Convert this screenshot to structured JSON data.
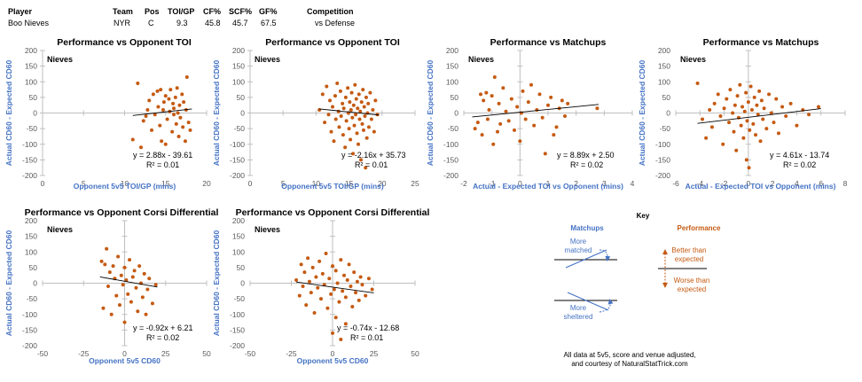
{
  "header": {
    "columns": [
      "Player",
      "Team",
      "Pos",
      "TOI/GP",
      "CF%",
      "SCF%",
      "GF%",
      "Competition"
    ],
    "values": [
      "Boo Nieves",
      "NYR",
      "C",
      "9.3",
      "45.8",
      "45.7",
      "67.5",
      "vs Defense"
    ]
  },
  "colors": {
    "point": "#c55a11",
    "axis_label": "#4472c4",
    "trend": "#000000",
    "tick": "#595959",
    "key_matchup": "#4472c4",
    "key_performance": "#c55a11"
  },
  "chart_data": [
    {
      "type": "scatter",
      "title": "Performance vs Opponent TOI",
      "panel_label": "Nieves",
      "xlabel": "Opponent 5v5 TOI/GP (mins)",
      "ylabel": "Actual CD60 - Expected CD60",
      "xlim": [
        0,
        20
      ],
      "ylim": [
        -200,
        200
      ],
      "xticks": [
        0,
        5,
        10,
        15,
        20
      ],
      "yticks": [
        200,
        150,
        100,
        50,
        0,
        -50,
        -100,
        -150,
        -200
      ],
      "trend": {
        "slope": 2.88,
        "intercept": -39.61,
        "x_range": [
          11,
          18.2
        ]
      },
      "equation": "y = 2.88x - 39.61",
      "r2": "R² = 0.01",
      "points": [
        [
          11,
          -85
        ],
        [
          11.6,
          95
        ],
        [
          12,
          -110
        ],
        [
          12.3,
          -25
        ],
        [
          12.6,
          -10
        ],
        [
          12.8,
          10
        ],
        [
          13,
          40
        ],
        [
          13.3,
          -55
        ],
        [
          13.5,
          60
        ],
        [
          13.7,
          -5
        ],
        [
          14,
          70
        ],
        [
          14.1,
          20
        ],
        [
          14.3,
          -40
        ],
        [
          14.4,
          75
        ],
        [
          14.5,
          -90
        ],
        [
          14.7,
          10
        ],
        [
          14.8,
          35
        ],
        [
          15,
          -100
        ],
        [
          15,
          55
        ],
        [
          15.2,
          -20
        ],
        [
          15.4,
          45
        ],
        [
          15.5,
          5
        ],
        [
          15.6,
          75
        ],
        [
          15.8,
          -60
        ],
        [
          15.9,
          30
        ],
        [
          16,
          -5
        ],
        [
          16,
          15
        ],
        [
          16.2,
          50
        ],
        [
          16.3,
          -35
        ],
        [
          16.4,
          80
        ],
        [
          16.5,
          0
        ],
        [
          16.6,
          -75
        ],
        [
          16.7,
          25
        ],
        [
          16.8,
          -15
        ],
        [
          17,
          60
        ],
        [
          17.1,
          -45
        ],
        [
          17.2,
          35
        ],
        [
          17.4,
          -90
        ],
        [
          17.5,
          10
        ],
        [
          17.6,
          115
        ],
        [
          17.8,
          -30
        ],
        [
          18,
          -55
        ]
      ]
    },
    {
      "type": "scatter",
      "title": "Performance vs Opponent TOI",
      "panel_label": "Nieves",
      "xlabel": "Opponent 5v5 TOI/GP (mins)",
      "ylabel": "Actual CD60 - Expected CD60",
      "xlim": [
        0,
        25
      ],
      "ylim": [
        -200,
        200
      ],
      "xticks": [
        0,
        5,
        10,
        15,
        20,
        25
      ],
      "yticks": [
        200,
        150,
        100,
        50,
        0,
        -50,
        -100,
        -150,
        -200
      ],
      "trend": {
        "slope": -2.16,
        "intercept": 35.73,
        "x_range": [
          10.5,
          19.5
        ]
      },
      "equation": "y = -2.16x + 35.73",
      "r2": "R² = 0.01",
      "points": [
        [
          10.5,
          10
        ],
        [
          11,
          60
        ],
        [
          11.3,
          -30
        ],
        [
          11.6,
          85
        ],
        [
          11.9,
          -5
        ],
        [
          12.1,
          40
        ],
        [
          12.3,
          -60
        ],
        [
          12.5,
          20
        ],
        [
          12.7,
          -90
        ],
        [
          12.9,
          55
        ],
        [
          13,
          -20
        ],
        [
          13.2,
          95
        ],
        [
          13.4,
          5
        ],
        [
          13.5,
          -45
        ],
        [
          13.7,
          70
        ],
        [
          13.8,
          -10
        ],
        [
          14,
          30
        ],
        [
          14.1,
          -70
        ],
        [
          14.2,
          15
        ],
        [
          14.4,
          -110
        ],
        [
          14.5,
          50
        ],
        [
          14.6,
          -25
        ],
        [
          14.8,
          80
        ],
        [
          14.9,
          0
        ],
        [
          15,
          -50
        ],
        [
          15.1,
          35
        ],
        [
          15.2,
          -85
        ],
        [
          15.3,
          10
        ],
        [
          15.4,
          65
        ],
        [
          15.5,
          -15
        ],
        [
          15.6,
          -130
        ],
        [
          15.7,
          25
        ],
        [
          15.8,
          -40
        ],
        [
          15.9,
          90
        ],
        [
          16,
          -5
        ],
        [
          16.1,
          45
        ],
        [
          16.2,
          -65
        ],
        [
          16.3,
          15
        ],
        [
          16.4,
          -100
        ],
        [
          16.5,
          60
        ],
        [
          16.6,
          -20
        ],
        [
          16.7,
          5
        ],
        [
          16.8,
          -150
        ],
        [
          16.9,
          35
        ],
        [
          17,
          -35
        ],
        [
          17.1,
          75
        ],
        [
          17.2,
          -55
        ],
        [
          17.3,
          20
        ],
        [
          17.4,
          -10
        ],
        [
          17.5,
          -175
        ],
        [
          17.6,
          50
        ],
        [
          17.7,
          -80
        ],
        [
          17.8,
          0
        ],
        [
          17.9,
          30
        ],
        [
          18,
          -45
        ],
        [
          18.2,
          65
        ],
        [
          18.4,
          -20
        ],
        [
          18.6,
          10
        ],
        [
          18.8,
          -60
        ],
        [
          19,
          40
        ],
        [
          19.3,
          -5
        ]
      ]
    },
    {
      "type": "scatter",
      "title": "Performance vs Matchups",
      "panel_label": "Nieves",
      "xlabel": "Actual - Expected TOI vs Opponent (mins)",
      "ylabel": "Actual CD60 - Expected CD60",
      "xlim": [
        -2,
        4
      ],
      "ylim": [
        -200,
        200
      ],
      "xticks": [
        -2,
        -1,
        0,
        1,
        2,
        3,
        4
      ],
      "yticks": [
        200,
        150,
        100,
        50,
        0,
        -50,
        -100,
        -150,
        -200
      ],
      "trend": {
        "slope": 8.89,
        "intercept": 2.5,
        "x_range": [
          -1.7,
          2.8
        ]
      },
      "equation": "y = 8.89x + 2.50",
      "r2": "R² = 0.02",
      "points": [
        [
          -1.6,
          -50
        ],
        [
          -1.5,
          -30
        ],
        [
          -1.4,
          60
        ],
        [
          -1.35,
          -70
        ],
        [
          -1.3,
          40
        ],
        [
          -1.2,
          65
        ],
        [
          -1.15,
          -20
        ],
        [
          -1.1,
          10
        ],
        [
          -1,
          55
        ],
        [
          -0.95,
          -100
        ],
        [
          -0.9,
          115
        ],
        [
          -0.8,
          -60
        ],
        [
          -0.75,
          30
        ],
        [
          -0.7,
          -35
        ],
        [
          -0.6,
          80
        ],
        [
          -0.5,
          5
        ],
        [
          -0.4,
          -25
        ],
        [
          -0.3,
          45
        ],
        [
          -0.2,
          -55
        ],
        [
          -0.1,
          20
        ],
        [
          0,
          -90
        ],
        [
          0.05,
          0
        ],
        [
          0.1,
          70
        ],
        [
          0.2,
          -20
        ],
        [
          0.3,
          35
        ],
        [
          0.4,
          90
        ],
        [
          0.5,
          -40
        ],
        [
          0.6,
          10
        ],
        [
          0.7,
          60
        ],
        [
          0.8,
          -15
        ],
        [
          0.9,
          -130
        ],
        [
          1,
          25
        ],
        [
          1.1,
          50
        ],
        [
          1.2,
          -70
        ],
        [
          1.3,
          -45
        ],
        [
          1.4,
          15
        ],
        [
          1.5,
          40
        ],
        [
          1.6,
          -10
        ],
        [
          1.7,
          30
        ],
        [
          2.75,
          15
        ]
      ]
    },
    {
      "type": "scatter",
      "title": "Performance vs Matchups",
      "panel_label": "Nieves",
      "xlabel": "Actual - Expected TOI vs Opponent (mins)",
      "ylabel": "Actual CD60 - Expected CD60",
      "xlim": [
        -6,
        8
      ],
      "ylim": [
        -200,
        200
      ],
      "xticks": [
        -6,
        -4,
        -2,
        0,
        2,
        4,
        6,
        8
      ],
      "yticks": [
        200,
        150,
        100,
        50,
        0,
        -50,
        -100,
        -150,
        -200
      ],
      "trend": {
        "slope": 4.61,
        "intercept": -13.74,
        "x_range": [
          -4.2,
          6
        ]
      },
      "equation": "y = 4.61x - 13.74",
      "r2": "R² = 0.02",
      "points": [
        [
          -4.2,
          95
        ],
        [
          -3.8,
          -20
        ],
        [
          -3.5,
          -80
        ],
        [
          -3.2,
          10
        ],
        [
          -3,
          -45
        ],
        [
          -2.8,
          30
        ],
        [
          -2.5,
          60
        ],
        [
          -2.3,
          -10
        ],
        [
          -2.1,
          -100
        ],
        [
          -2,
          15
        ],
        [
          -1.8,
          45
        ],
        [
          -1.6,
          -30
        ],
        [
          -1.5,
          75
        ],
        [
          -1.3,
          0
        ],
        [
          -1.2,
          -60
        ],
        [
          -1.1,
          25
        ],
        [
          -1,
          -120
        ],
        [
          -0.9,
          55
        ],
        [
          -0.8,
          -15
        ],
        [
          -0.7,
          90
        ],
        [
          -0.6,
          -40
        ],
        [
          -0.5,
          20
        ],
        [
          -0.4,
          -80
        ],
        [
          -0.3,
          5
        ],
        [
          -0.2,
          65
        ],
        [
          -0.15,
          -150
        ],
        [
          -0.1,
          -25
        ],
        [
          0,
          35
        ],
        [
          0.05,
          -175
        ],
        [
          0.1,
          -55
        ],
        [
          0.2,
          85
        ],
        [
          0.3,
          10
        ],
        [
          0.4,
          -35
        ],
        [
          0.5,
          50
        ],
        [
          0.6,
          -70
        ],
        [
          0.7,
          25
        ],
        [
          0.8,
          -5
        ],
        [
          0.9,
          70
        ],
        [
          1,
          -90
        ],
        [
          1.1,
          40
        ],
        [
          1.2,
          -20
        ],
        [
          1.3,
          15
        ],
        [
          1.5,
          -50
        ],
        [
          1.7,
          60
        ],
        [
          1.9,
          0
        ],
        [
          2.1,
          -30
        ],
        [
          2.3,
          45
        ],
        [
          2.5,
          -65
        ],
        [
          2.8,
          20
        ],
        [
          3.1,
          -10
        ],
        [
          3.5,
          30
        ],
        [
          4,
          -40
        ],
        [
          4.5,
          10
        ],
        [
          5,
          -5
        ],
        [
          5.8,
          20
        ]
      ]
    },
    {
      "type": "scatter",
      "title": "Performance vs Opponent Corsi Differential",
      "panel_label": "Nieves",
      "xlabel": "Opponent 5v5 CD60",
      "ylabel": "Actual CD60 - Expected CD60",
      "xlim": [
        -50,
        50
      ],
      "ylim": [
        -200,
        200
      ],
      "xticks": [
        -50,
        -25,
        0,
        25,
        50
      ],
      "yticks": [
        200,
        150,
        100,
        50,
        0,
        -50,
        -100,
        -150,
        -200
      ],
      "trend": {
        "slope": -0.92,
        "intercept": 6.21,
        "x_range": [
          -15,
          20
        ]
      },
      "equation": "y = -0.92x + 6.21",
      "r2": "R² = 0.02",
      "points": [
        [
          -14,
          70
        ],
        [
          -13,
          -80
        ],
        [
          -12,
          60
        ],
        [
          -11,
          110
        ],
        [
          -10,
          -10
        ],
        [
          -9,
          35
        ],
        [
          -8,
          -100
        ],
        [
          -7,
          55
        ],
        [
          -6,
          15
        ],
        [
          -5,
          -40
        ],
        [
          -4,
          85
        ],
        [
          -3,
          -70
        ],
        [
          -2,
          25
        ],
        [
          -1,
          -5
        ],
        [
          0,
          50
        ],
        [
          0,
          -125
        ],
        [
          1,
          10
        ],
        [
          2,
          -35
        ],
        [
          3,
          75
        ],
        [
          4,
          -60
        ],
        [
          5,
          20
        ],
        [
          6,
          40
        ],
        [
          7,
          -15
        ],
        [
          8,
          -90
        ],
        [
          9,
          55
        ],
        [
          10,
          0
        ],
        [
          11,
          -45
        ],
        [
          12,
          30
        ],
        [
          13,
          -100
        ],
        [
          14,
          -20
        ],
        [
          15,
          15
        ],
        [
          17,
          -65
        ],
        [
          19,
          -5
        ]
      ]
    },
    {
      "type": "scatter",
      "title": "Performance vs Opponent Corsi Differential",
      "panel_label": "Nieves",
      "xlabel": "Opponent 5v5 CD60",
      "ylabel": "Actual CD60 - Expected CD60",
      "xlim": [
        -50,
        50
      ],
      "ylim": [
        -200,
        200
      ],
      "xticks": [
        -50,
        -25,
        0,
        25,
        50
      ],
      "yticks": [
        200,
        150,
        100,
        50,
        0,
        -50,
        -100,
        -150,
        -200
      ],
      "trend": {
        "slope": -0.74,
        "intercept": -12.68,
        "x_range": [
          -22,
          25
        ]
      },
      "equation": "y = -0.74x - 12.68",
      "r2": "R² = 0.01",
      "points": [
        [
          -22,
          10
        ],
        [
          -20,
          -40
        ],
        [
          -19,
          60
        ],
        [
          -18,
          -10
        ],
        [
          -17,
          35
        ],
        [
          -16,
          -70
        ],
        [
          -15,
          80
        ],
        [
          -14,
          5
        ],
        [
          -13,
          -30
        ],
        [
          -12,
          50
        ],
        [
          -11,
          -95
        ],
        [
          -10,
          20
        ],
        [
          -9,
          -15
        ],
        [
          -8,
          70
        ],
        [
          -7,
          -50
        ],
        [
          -6,
          30
        ],
        [
          -5,
          -5
        ],
        [
          -4,
          95
        ],
        [
          -3,
          -80
        ],
        [
          -2,
          15
        ],
        [
          -1,
          -35
        ],
        [
          0,
          55
        ],
        [
          0,
          -160
        ],
        [
          1,
          -20
        ],
        [
          2,
          40
        ],
        [
          2,
          -110
        ],
        [
          3,
          0
        ],
        [
          4,
          -60
        ],
        [
          5,
          75
        ],
        [
          5,
          -180
        ],
        [
          6,
          -25
        ],
        [
          7,
          25
        ],
        [
          8,
          -130
        ],
        [
          8,
          -45
        ],
        [
          9,
          10
        ],
        [
          10,
          60
        ],
        [
          11,
          -10
        ],
        [
          12,
          -75
        ],
        [
          13,
          35
        ],
        [
          14,
          -30
        ],
        [
          15,
          5
        ],
        [
          16,
          -55
        ],
        [
          17,
          20
        ],
        [
          18,
          -5
        ],
        [
          20,
          -40
        ],
        [
          22,
          15
        ],
        [
          24,
          -20
        ]
      ]
    }
  ],
  "key": {
    "title": "Key",
    "matchups_label": "Matchups",
    "performance_label": "Performance",
    "more_matched": "More matched",
    "more_sheltered": "More sheltered",
    "better": "Better than expected",
    "worse": "Worse than expected"
  },
  "footer": [
    "All data at 5v5, score and venue adjusted,",
    "and courtesy of NaturalStatTrick.com"
  ]
}
